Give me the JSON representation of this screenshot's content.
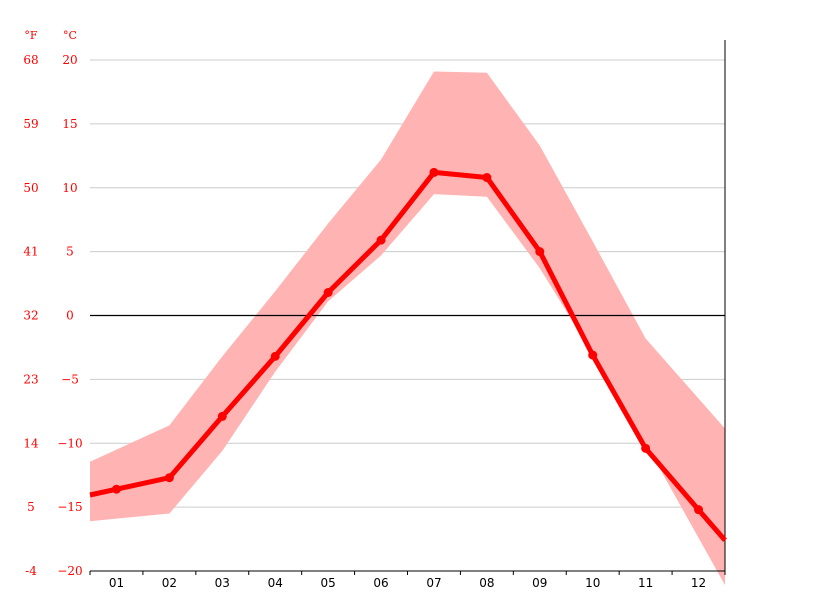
{
  "chart_data": {
    "type": "line",
    "units": {
      "fahrenheit": "°F",
      "celsius": "°C"
    },
    "categories": [
      "01",
      "02",
      "03",
      "04",
      "05",
      "06",
      "07",
      "08",
      "09",
      "10",
      "11",
      "12"
    ],
    "celsius_ticks": [
      20,
      15,
      10,
      5,
      0,
      -5,
      -10,
      -15,
      -20
    ],
    "celsius_tick_labels": [
      "20",
      "15",
      "10",
      "5",
      "0",
      "−5",
      "−10",
      "−15",
      "−20"
    ],
    "fahrenheit_tick_labels": [
      "68",
      "59",
      "50",
      "41",
      "32",
      "23",
      "14",
      "5",
      "-4"
    ],
    "ylim": [
      -20,
      20
    ],
    "grid": true,
    "series": [
      {
        "values": [
          -13.6,
          -12.7,
          -7.9,
          -3.2,
          1.8,
          5.9,
          11.2,
          10.8,
          5.0,
          -3.1,
          -10.4,
          -15.2
        ],
        "color": "#ff0000"
      }
    ],
    "range_band": {
      "max": [
        -10.5,
        -8.6,
        -3.2,
        1.9,
        7.2,
        12.2,
        19.1,
        19.0,
        13.3,
        5.8,
        -1.8,
        -6.5
      ],
      "min": [
        -15.9,
        -15.5,
        -10.6,
        -4.4,
        1.1,
        4.7,
        9.5,
        9.3,
        3.7,
        -3.0,
        -10.0,
        -17.4
      ],
      "color": "#ffb3b3"
    },
    "zero_line_color": "#000000",
    "grid_color": "#cccccc",
    "axis_label_color": "#ff0000"
  }
}
